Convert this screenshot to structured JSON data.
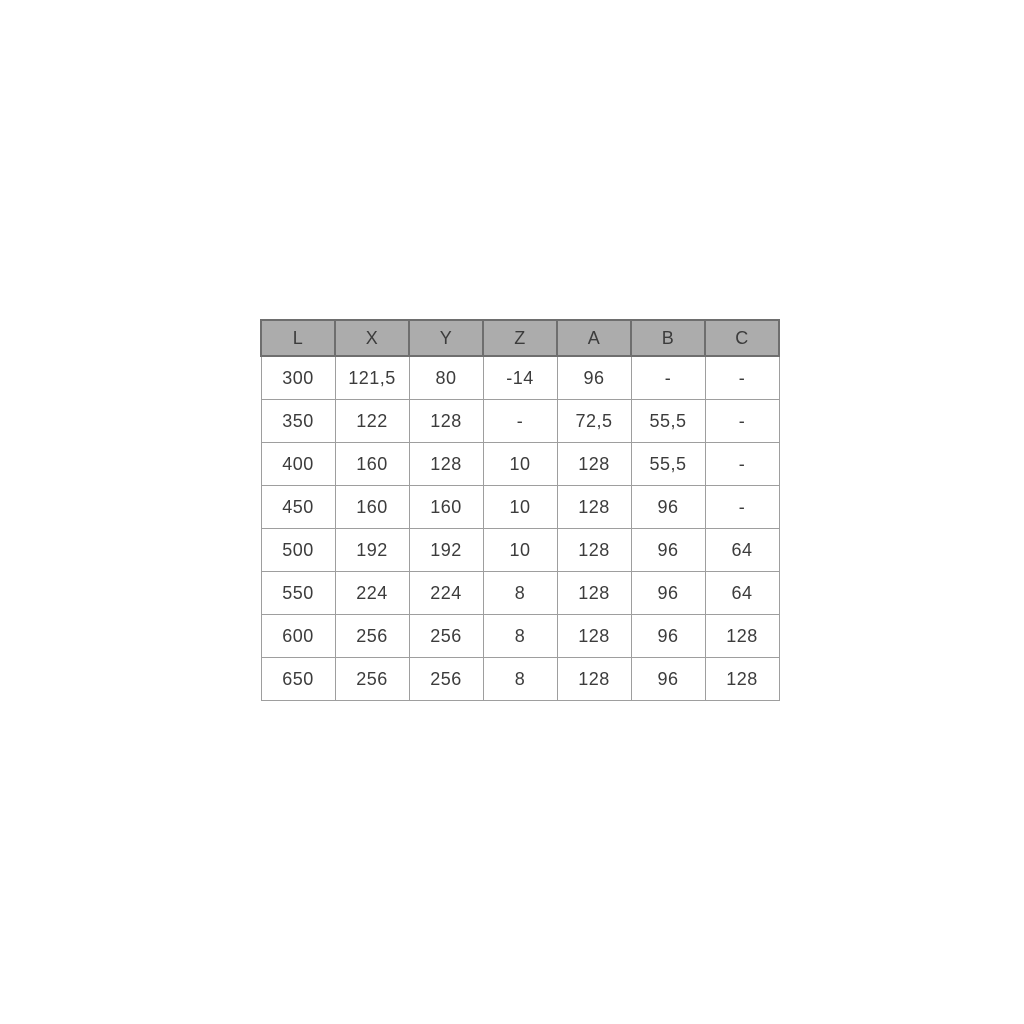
{
  "chart_data": {
    "type": "table",
    "columns": [
      "L",
      "X",
      "Y",
      "Z",
      "A",
      "B",
      "C"
    ],
    "rows": [
      [
        "300",
        "121,5",
        "80",
        "-14",
        "96",
        "-",
        "-"
      ],
      [
        "350",
        "122",
        "128",
        "-",
        "72,5",
        "55,5",
        "-"
      ],
      [
        "400",
        "160",
        "128",
        "10",
        "128",
        "55,5",
        "-"
      ],
      [
        "450",
        "160",
        "160",
        "10",
        "128",
        "96",
        "-"
      ],
      [
        "500",
        "192",
        "192",
        "10",
        "128",
        "96",
        "64"
      ],
      [
        "550",
        "224",
        "224",
        "8",
        "128",
        "96",
        "64"
      ],
      [
        "600",
        "256",
        "256",
        "8",
        "128",
        "96",
        "128"
      ],
      [
        "650",
        "256",
        "256",
        "8",
        "128",
        "96",
        "128"
      ]
    ],
    "decimal_separator": ",",
    "empty_value_marker": "-",
    "colors": {
      "header_background": "#acacac",
      "header_border": "#6e6e6e",
      "body_border": "#9e9e9e",
      "cell_background": "#ffffff",
      "text": "#3c3c3c",
      "page_background": "#ffffff"
    }
  }
}
